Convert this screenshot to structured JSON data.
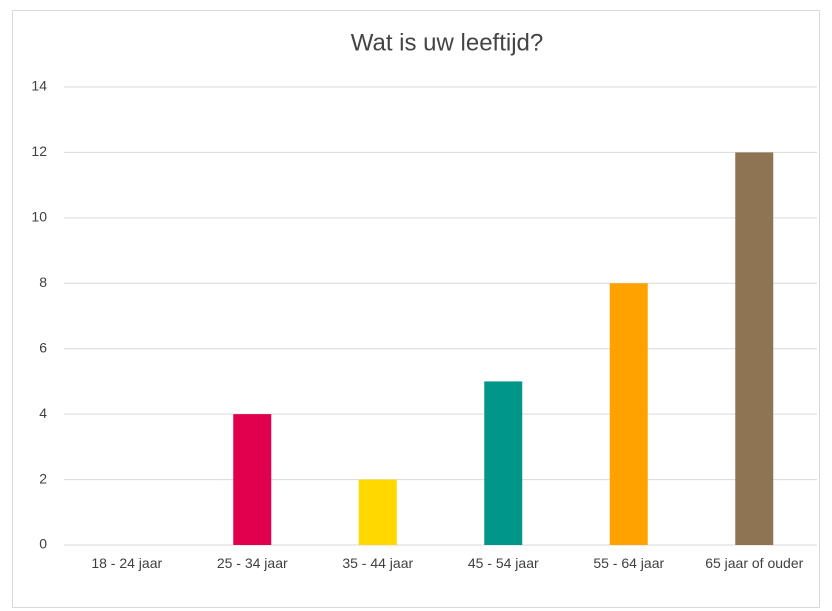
{
  "chart_data": {
    "type": "bar",
    "title": "Wat is uw leeftijd?",
    "categories": [
      "18 - 24 jaar",
      "25 - 34 jaar",
      "35 - 44 jaar",
      "45 - 54 jaar",
      "55 - 64 jaar",
      "65 jaar of ouder"
    ],
    "values": [
      0,
      4,
      2,
      5,
      8,
      12
    ],
    "colors": [
      "#4472c4",
      "#e0004d",
      "#ffd800",
      "#00968a",
      "#ffa200",
      "#8f7454"
    ],
    "ylim": [
      0,
      14
    ],
    "yticks": [
      0,
      2,
      4,
      6,
      8,
      10,
      12,
      14
    ],
    "grid": true
  }
}
